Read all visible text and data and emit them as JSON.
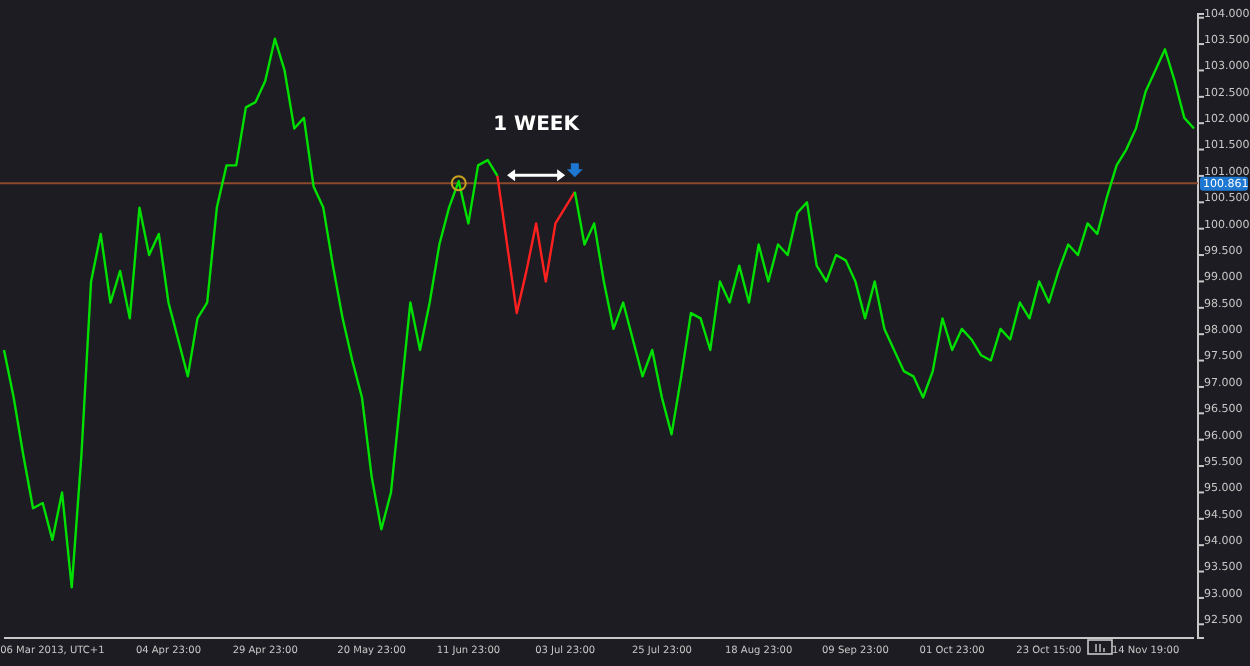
{
  "chart_data": {
    "type": "line",
    "ylim": [
      92.24,
      104.07
    ],
    "categories": [
      null,
      null,
      null,
      null,
      null,
      "06 Mar 2013, UTC+1",
      null,
      null,
      null,
      null,
      null,
      null,
      null,
      null,
      null,
      null,
      null,
      "04 Apr 23:00",
      null,
      null,
      null,
      null,
      null,
      null,
      null,
      null,
      null,
      "29 Apr 23:00",
      null,
      null,
      null,
      null,
      null,
      null,
      null,
      null,
      null,
      null,
      "20 May 23:00",
      null,
      null,
      null,
      null,
      null,
      null,
      null,
      null,
      null,
      "11 Jun 23:00",
      null,
      null,
      null,
      null,
      null,
      null,
      null,
      null,
      null,
      "03 Jul 23:00",
      null,
      null,
      null,
      null,
      null,
      null,
      null,
      null,
      null,
      "25 Jul 23:00",
      null,
      null,
      null,
      null,
      null,
      null,
      null,
      null,
      null,
      "18 Aug 23:00",
      null,
      null,
      null,
      null,
      null,
      null,
      null,
      null,
      null,
      "09 Sep 23:00",
      null,
      null,
      null,
      null,
      null,
      null,
      null,
      null,
      null,
      "01 Oct 23:00",
      null,
      null,
      null,
      null,
      null,
      null,
      null,
      null,
      null,
      "23 Oct 15:00",
      null,
      null,
      null,
      null,
      null,
      null,
      null,
      null,
      null,
      "14 Nov 19:00",
      null,
      null,
      null,
      null,
      null
    ],
    "yticks": [
      {
        "value": 92.5,
        "label": "92.500"
      },
      {
        "value": 93,
        "label": "93.000"
      },
      {
        "value": 93.5,
        "label": "93.500"
      },
      {
        "value": 94,
        "label": "94.000"
      },
      {
        "value": 94.5,
        "label": "94.500"
      },
      {
        "value": 95,
        "label": "95.000"
      },
      {
        "value": 95.5,
        "label": "95.500"
      },
      {
        "value": 96,
        "label": "96.000"
      },
      {
        "value": 96.5,
        "label": "96.500"
      },
      {
        "value": 97,
        "label": "97.000"
      },
      {
        "value": 97.5,
        "label": "97.500"
      },
      {
        "value": 98,
        "label": "98.000"
      },
      {
        "value": 98.5,
        "label": "98.500"
      },
      {
        "value": 99,
        "label": "99.000"
      },
      {
        "value": 99.5,
        "label": "99.500"
      },
      {
        "value": 100,
        "label": "100.000"
      },
      {
        "value": 100.5,
        "label": "100.500"
      },
      {
        "value": 101,
        "label": "101.000"
      },
      {
        "value": 101.5,
        "label": "101.500"
      },
      {
        "value": 102,
        "label": "102.000"
      },
      {
        "value": 102.5,
        "label": "102.500"
      },
      {
        "value": 103,
        "label": "103.000"
      },
      {
        "value": 103.5,
        "label": "103.500"
      },
      {
        "value": 104,
        "label": "104.000"
      }
    ],
    "grid": false,
    "marker": "none",
    "line_style": "solid",
    "annotations": [
      "1 WEEK"
    ],
    "ref_lines": [
      {
        "axis": "y",
        "value": 100.861,
        "label": "100.861",
        "color": "#8b4a2b"
      }
    ],
    "series": [
      {
        "color": "#00e000",
        "values": [
          97.7,
          96.8,
          95.7,
          94.7,
          94.8,
          94.1,
          95.0,
          93.2,
          95.7,
          99.0,
          99.9,
          98.6,
          99.2,
          98.3,
          100.4,
          99.5,
          99.9,
          98.6,
          97.9,
          97.2,
          98.3,
          98.6,
          100.4,
          101.2,
          101.2,
          102.3,
          102.4,
          102.8,
          103.6,
          103.0,
          101.9,
          102.1,
          100.8,
          100.4,
          99.3,
          98.3,
          97.5,
          96.8,
          95.3,
          94.3,
          95.0,
          96.8,
          98.6,
          97.7,
          98.6,
          99.7,
          100.4,
          100.9,
          100.1,
          101.2,
          101.3,
          101.0,
          null,
          null,
          null,
          null,
          null,
          null,
          null,
          null,
          null,
          null,
          null,
          null,
          null,
          null,
          null,
          null,
          null,
          null,
          null,
          null,
          null,
          null,
          null,
          null,
          null,
          null,
          null,
          null,
          null,
          null,
          null,
          null,
          null,
          null,
          null,
          null,
          null,
          null,
          null,
          null,
          null,
          null,
          null,
          null,
          null,
          null,
          null,
          null,
          null,
          null,
          null,
          null,
          null,
          null,
          null,
          null,
          null,
          null,
          null,
          null,
          null,
          null,
          null,
          null,
          null,
          null,
          null,
          null,
          null,
          null,
          null,
          null
        ]
      },
      {
        "color": "#ff2020",
        "values": [
          null,
          null,
          null,
          null,
          null,
          null,
          null,
          null,
          null,
          null,
          null,
          null,
          null,
          null,
          null,
          null,
          null,
          null,
          null,
          null,
          null,
          null,
          null,
          null,
          null,
          null,
          null,
          null,
          null,
          null,
          null,
          null,
          null,
          null,
          null,
          null,
          null,
          null,
          null,
          null,
          null,
          null,
          null,
          null,
          null,
          null,
          null,
          null,
          null,
          null,
          null,
          101.0,
          99.7,
          98.4,
          99.2,
          100.1,
          99.0,
          100.1,
          100.4,
          100.7,
          null,
          null,
          null,
          null,
          null,
          null,
          null,
          null,
          null,
          null,
          null,
          null,
          null,
          null,
          null,
          null,
          null,
          null,
          null,
          null,
          null,
          null,
          null,
          null,
          null,
          null,
          null,
          null,
          null,
          null,
          null,
          null,
          null,
          null,
          null,
          null,
          null,
          null,
          null,
          null,
          null,
          null,
          null,
          null,
          null,
          null,
          null,
          null,
          null,
          null,
          null,
          null,
          null,
          null,
          null,
          null,
          null,
          null,
          null,
          null,
          null,
          null,
          null,
          null
        ]
      },
      {
        "color": "#00e000",
        "values": [
          null,
          null,
          null,
          null,
          null,
          null,
          null,
          null,
          null,
          null,
          null,
          null,
          null,
          null,
          null,
          null,
          null,
          null,
          null,
          null,
          null,
          null,
          null,
          null,
          null,
          null,
          null,
          null,
          null,
          null,
          null,
          null,
          null,
          null,
          null,
          null,
          null,
          null,
          null,
          null,
          null,
          null,
          null,
          null,
          null,
          null,
          null,
          null,
          null,
          null,
          null,
          null,
          null,
          null,
          null,
          null,
          null,
          null,
          null,
          100.7,
          99.7,
          100.1,
          99.0,
          98.1,
          98.6,
          97.9,
          97.2,
          97.7,
          96.8,
          96.1,
          97.2,
          98.4,
          98.3,
          97.7,
          99.0,
          98.6,
          99.3,
          98.6,
          99.7,
          99.0,
          99.7,
          99.5,
          100.3,
          100.5,
          99.3,
          99.0,
          99.5,
          99.4,
          99.0,
          98.3,
          99.0,
          98.1,
          97.7,
          97.3,
          97.2,
          96.8,
          97.3,
          98.3,
          97.7,
          98.1,
          97.9,
          97.6,
          97.5,
          98.1,
          97.9,
          98.6,
          98.3,
          99.0,
          98.6,
          99.2,
          99.7,
          99.5,
          100.1,
          99.9,
          100.6,
          101.2,
          101.5,
          101.9,
          102.6,
          103.0,
          103.4,
          102.8,
          102.1,
          101.9
        ]
      }
    ]
  }
}
